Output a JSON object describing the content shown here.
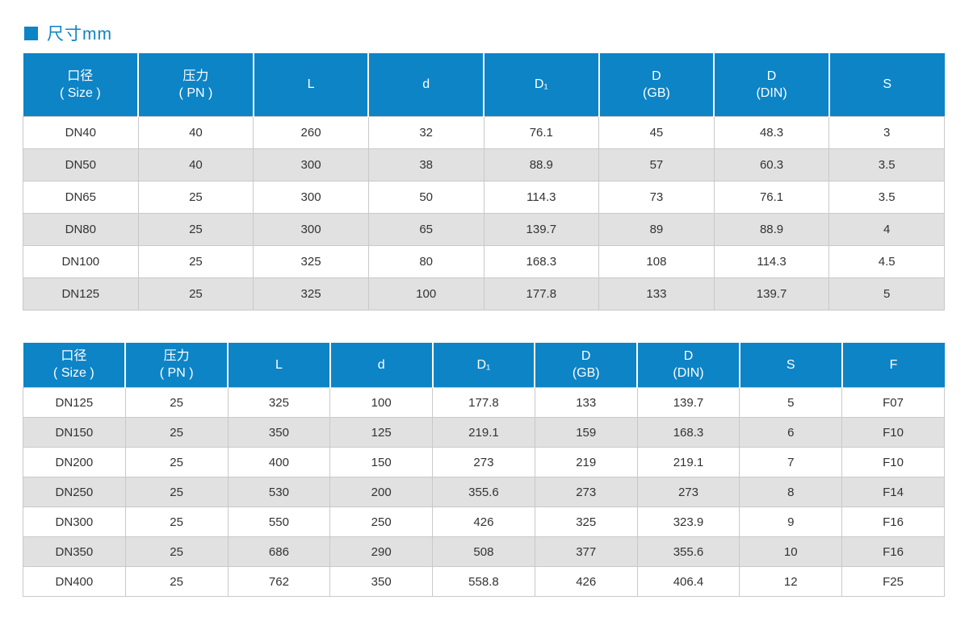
{
  "page": {
    "title": "尺寸mm",
    "colors": {
      "accent_blue": "#0d84c6",
      "stripe_gray": "#e1e1e1",
      "grid_line": "#c9c9c9",
      "header_text": "#ffffff",
      "body_text": "#333333"
    }
  },
  "tables": [
    {
      "name": "dimensions-table-1",
      "headers": [
        [
          "口径",
          "( Size )"
        ],
        [
          "压力",
          "( PN )"
        ],
        [
          "L"
        ],
        [
          "d"
        ],
        [
          "D₁"
        ],
        [
          "D",
          "(GB)"
        ],
        [
          "D",
          "(DIN)"
        ],
        [
          "S"
        ]
      ],
      "rows": [
        [
          "DN40",
          "40",
          "260",
          "32",
          "76.1",
          "45",
          "48.3",
          "3"
        ],
        [
          "DN50",
          "40",
          "300",
          "38",
          "88.9",
          "57",
          "60.3",
          "3.5"
        ],
        [
          "DN65",
          "25",
          "300",
          "50",
          "114.3",
          "73",
          "76.1",
          "3.5"
        ],
        [
          "DN80",
          "25",
          "300",
          "65",
          "139.7",
          "89",
          "88.9",
          "4"
        ],
        [
          "DN100",
          "25",
          "325",
          "80",
          "168.3",
          "108",
          "114.3",
          "4.5"
        ],
        [
          "DN125",
          "25",
          "325",
          "100",
          "177.8",
          "133",
          "139.7",
          "5"
        ]
      ]
    },
    {
      "name": "dimensions-table-2",
      "headers": [
        [
          "口径",
          "( Size )"
        ],
        [
          "压力",
          "( PN )"
        ],
        [
          "L"
        ],
        [
          "d"
        ],
        [
          "D₁"
        ],
        [
          "D",
          "(GB)"
        ],
        [
          "D",
          "(DIN)"
        ],
        [
          "S"
        ],
        [
          "F"
        ]
      ],
      "rows": [
        [
          "DN125",
          "25",
          "325",
          "100",
          "177.8",
          "133",
          "139.7",
          "5",
          "F07"
        ],
        [
          "DN150",
          "25",
          "350",
          "125",
          "219.1",
          "159",
          "168.3",
          "6",
          "F10"
        ],
        [
          "DN200",
          "25",
          "400",
          "150",
          "273",
          "219",
          "219.1",
          "7",
          "F10"
        ],
        [
          "DN250",
          "25",
          "530",
          "200",
          "355.6",
          "273",
          "273",
          "8",
          "F14"
        ],
        [
          "DN300",
          "25",
          "550",
          "250",
          "426",
          "325",
          "323.9",
          "9",
          "F16"
        ],
        [
          "DN350",
          "25",
          "686",
          "290",
          "508",
          "377",
          "355.6",
          "10",
          "F16"
        ],
        [
          "DN400",
          "25",
          "762",
          "350",
          "558.8",
          "426",
          "406.4",
          "12",
          "F25"
        ]
      ]
    }
  ]
}
